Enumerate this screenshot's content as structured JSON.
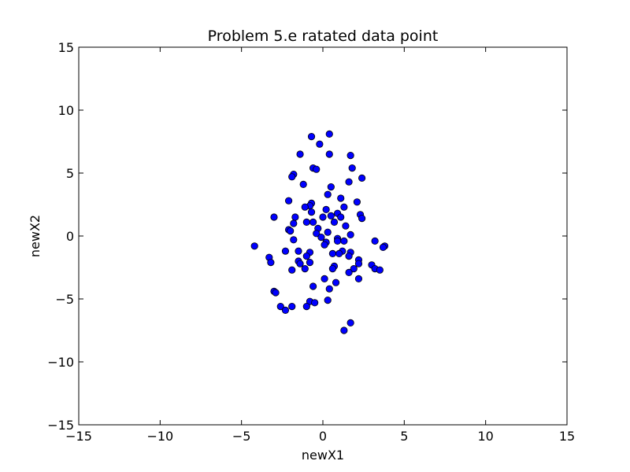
{
  "chart_data": {
    "type": "scatter",
    "title": "Problem 5.e ratated data point",
    "xlabel": "newX1",
    "ylabel": "newX2",
    "xlim": [
      -15,
      15
    ],
    "ylim": [
      -15,
      15
    ],
    "xticks": [
      -15,
      -10,
      -5,
      0,
      5,
      10,
      15
    ],
    "yticks": [
      -15,
      -10,
      -5,
      0,
      5,
      10,
      15
    ],
    "xtick_labels": [
      "−15",
      "−10",
      "−5",
      "0",
      "5",
      "10",
      "15"
    ],
    "ytick_labels": [
      "−15",
      "−10",
      "−5",
      "0",
      "5",
      "10",
      "15"
    ],
    "grid": false,
    "marker_color": "#0000ff",
    "marker_edge_color": "#000000",
    "series": [
      {
        "points": [
          [
            0.4,
            8.1
          ],
          [
            -0.7,
            7.9
          ],
          [
            -0.2,
            7.3
          ],
          [
            -1.4,
            6.5
          ],
          [
            0.4,
            6.5
          ],
          [
            1.7,
            6.4
          ],
          [
            -0.6,
            5.4
          ],
          [
            -0.4,
            5.3
          ],
          [
            1.8,
            5.4
          ],
          [
            -1.8,
            4.9
          ],
          [
            -1.9,
            4.7
          ],
          [
            2.4,
            4.6
          ],
          [
            1.6,
            4.3
          ],
          [
            -1.2,
            4.1
          ],
          [
            0.5,
            3.9
          ],
          [
            0.3,
            3.3
          ],
          [
            1.1,
            3.0
          ],
          [
            -2.1,
            2.8
          ],
          [
            2.1,
            2.7
          ],
          [
            -0.7,
            2.6
          ],
          [
            -0.8,
            2.4
          ],
          [
            -1.1,
            2.3
          ],
          [
            1.3,
            2.3
          ],
          [
            0.2,
            2.1
          ],
          [
            -0.7,
            1.9
          ],
          [
            0.9,
            1.8
          ],
          [
            2.3,
            1.7
          ],
          [
            0.5,
            1.6
          ],
          [
            0.0,
            1.5
          ],
          [
            1.1,
            1.5
          ],
          [
            -1.7,
            1.5
          ],
          [
            -3.0,
            1.5
          ],
          [
            2.4,
            1.4
          ],
          [
            0.7,
            1.1
          ],
          [
            -1.0,
            1.1
          ],
          [
            -0.6,
            1.1
          ],
          [
            -1.8,
            1.0
          ],
          [
            1.4,
            0.8
          ],
          [
            -0.3,
            0.6
          ],
          [
            -2.1,
            0.5
          ],
          [
            -2.0,
            0.4
          ],
          [
            0.3,
            0.3
          ],
          [
            -0.4,
            0.2
          ],
          [
            1.7,
            0.1
          ],
          [
            -0.1,
            -0.1
          ],
          [
            0.9,
            -0.2
          ],
          [
            -1.8,
            -0.3
          ],
          [
            1.3,
            -0.4
          ],
          [
            0.2,
            -0.5
          ],
          [
            0.9,
            -0.4
          ],
          [
            3.2,
            -0.4
          ],
          [
            0.1,
            -0.7
          ],
          [
            -4.2,
            -0.8
          ],
          [
            3.8,
            -0.8
          ],
          [
            3.7,
            -0.9
          ],
          [
            -2.3,
            -1.2
          ],
          [
            -1.5,
            -1.2
          ],
          [
            1.2,
            -1.2
          ],
          [
            1.7,
            -1.3
          ],
          [
            -0.8,
            -1.3
          ],
          [
            0.6,
            -1.4
          ],
          [
            1.0,
            -1.4
          ],
          [
            -1.0,
            -1.6
          ],
          [
            1.6,
            -1.6
          ],
          [
            -3.3,
            -1.7
          ],
          [
            2.2,
            -1.9
          ],
          [
            -1.5,
            -2.0
          ],
          [
            -0.8,
            -2.1
          ],
          [
            -3.2,
            -2.1
          ],
          [
            2.2,
            -2.2
          ],
          [
            -1.4,
            -2.2
          ],
          [
            3.0,
            -2.3
          ],
          [
            0.7,
            -2.4
          ],
          [
            -1.1,
            -2.6
          ],
          [
            -1.9,
            -2.7
          ],
          [
            0.6,
            -2.6
          ],
          [
            1.9,
            -2.6
          ],
          [
            3.2,
            -2.6
          ],
          [
            3.5,
            -2.7
          ],
          [
            1.6,
            -2.9
          ],
          [
            0.1,
            -3.4
          ],
          [
            2.2,
            -3.4
          ],
          [
            0.8,
            -3.7
          ],
          [
            -0.6,
            -4.0
          ],
          [
            0.4,
            -4.2
          ],
          [
            -3.0,
            -4.4
          ],
          [
            -2.9,
            -4.5
          ],
          [
            0.3,
            -5.1
          ],
          [
            -0.8,
            -5.2
          ],
          [
            -0.5,
            -5.3
          ],
          [
            -1.9,
            -5.6
          ],
          [
            -2.6,
            -5.6
          ],
          [
            -1.0,
            -5.6
          ],
          [
            -2.3,
            -5.9
          ],
          [
            1.7,
            -6.9
          ],
          [
            1.3,
            -7.5
          ]
        ]
      }
    ]
  }
}
